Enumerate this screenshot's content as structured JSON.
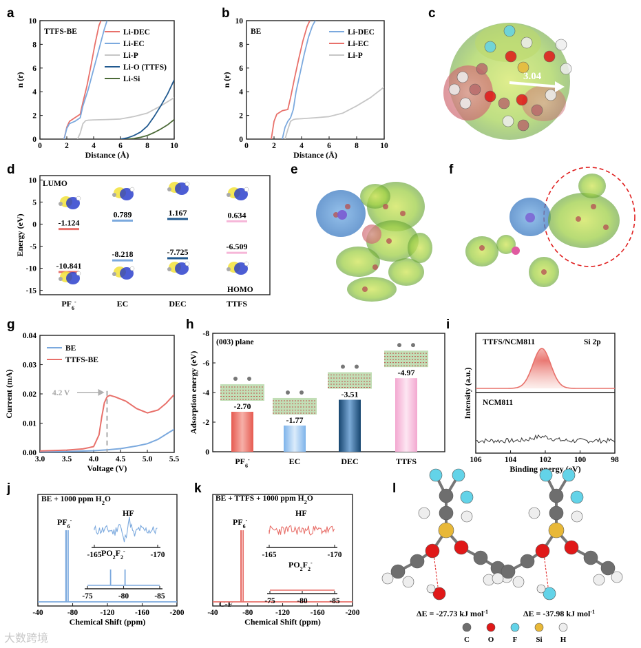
{
  "panel_letters": [
    "a",
    "b",
    "c",
    "d",
    "e",
    "f",
    "g",
    "h",
    "i",
    "j",
    "k",
    "l"
  ],
  "panel_a": {
    "inset": "TTFS-BE"
  },
  "panel_b": {
    "inset": "BE"
  },
  "panel_c": {
    "distance_label": "3.04"
  },
  "panel_d": {
    "lumo_label": "LUMO",
    "homo_label": "HOMO"
  },
  "panel_g": {
    "annotation": "4.2 V"
  },
  "panel_h": {
    "plane_label": "(003) plane"
  },
  "panel_i": {
    "top_label": "TTFS/NCM811",
    "orbital_label": "Si 2p",
    "bottom_label": "NCM811"
  },
  "panel_j": {
    "condition": "BE + 1000 ppm H",
    "subscript": "2",
    "condition_tail": "O",
    "pf6": "PF",
    "hf": "HF",
    "po2f2": "PO2F2-"
  },
  "panel_k": {
    "condition": "BE + TTFS + 1000 ppm H",
    "subscript": "2",
    "condition_tail": "O",
    "pf6": "PF",
    "hf": "HF",
    "po2f2": "PO2F2-",
    "cf": "C-F"
  },
  "panel_l": {
    "energy_1": "ΔE = -27.73 kJ mol",
    "energy_2": "ΔE = -37.98 kJ mol",
    "unit_exp": "-1",
    "elements": [
      {
        "symbol": "C",
        "color": "#6e6e6e"
      },
      {
        "symbol": "O",
        "color": "#e01818"
      },
      {
        "symbol": "F",
        "color": "#63d3e8"
      },
      {
        "symbol": "Si",
        "color": "#e8b838"
      },
      {
        "symbol": "H",
        "color": "#eeeeee"
      }
    ]
  },
  "watermark": "大数跨境",
  "colors": {
    "red": "#e8706a",
    "blue": "#7ba9de",
    "gray": "#c6c6c6",
    "navy": "#20598f",
    "olive": "#4c6a37",
    "pink": "#f6b6d8",
    "lblue": "#9cc5ee"
  },
  "chart_data": [
    {
      "id": "a",
      "type": "line",
      "xlabel": "Distance (Å)",
      "ylabel": "n (r)",
      "xlim": [
        0,
        10
      ],
      "ylim": [
        0,
        10
      ],
      "xticks": [
        0,
        2,
        4,
        6,
        8,
        10
      ],
      "yticks": [
        0,
        2,
        4,
        6,
        8,
        10
      ],
      "legend_position": "top-right",
      "series": [
        {
          "name": "Li-DEC",
          "color": "#e8706a",
          "x": [
            1.8,
            2.0,
            2.2,
            2.6,
            3.0,
            3.2,
            3.5,
            3.8,
            4.1,
            4.4,
            4.55
          ],
          "y": [
            0,
            1.0,
            1.5,
            1.8,
            2.1,
            3.1,
            4.5,
            6.2,
            8.0,
            9.6,
            10
          ]
        },
        {
          "name": "Li-EC",
          "color": "#7ba9de",
          "x": [
            1.8,
            2.0,
            2.2,
            2.6,
            3.0,
            3.2,
            3.6,
            4.0,
            4.4,
            4.8,
            5.0
          ],
          "y": [
            0,
            0.9,
            1.3,
            1.5,
            1.8,
            2.8,
            4.2,
            5.9,
            7.6,
            9.3,
            10
          ]
        },
        {
          "name": "Li-P",
          "color": "#c6c6c6",
          "x": [
            2.8,
            3.0,
            3.2,
            3.4,
            3.6,
            4.0,
            5.0,
            6.0,
            7.0,
            8.0,
            9.0,
            10.0
          ],
          "y": [
            0,
            0.5,
            1.3,
            1.55,
            1.6,
            1.62,
            1.65,
            1.7,
            1.9,
            2.2,
            2.8,
            3.5
          ]
        },
        {
          "name": "Li-O (TTFS)",
          "color": "#20598f",
          "x": [
            6.0,
            6.5,
            7.0,
            7.5,
            8.0,
            8.5,
            9.0,
            9.5,
            10.0
          ],
          "y": [
            0,
            0.1,
            0.3,
            0.6,
            1.1,
            1.9,
            2.8,
            3.8,
            5.0
          ]
        },
        {
          "name": "Li-Si",
          "color": "#4c6a37",
          "x": [
            6.5,
            7.0,
            7.5,
            8.0,
            8.5,
            9.0,
            9.5,
            10.0
          ],
          "y": [
            0,
            0.05,
            0.15,
            0.3,
            0.55,
            0.85,
            1.2,
            1.65
          ]
        }
      ]
    },
    {
      "id": "b",
      "type": "line",
      "xlabel": "Distance (Å)",
      "ylabel": "n (r)",
      "xlim": [
        0,
        10
      ],
      "ylim": [
        0,
        10
      ],
      "xticks": [
        0,
        2,
        4,
        6,
        8,
        10
      ],
      "yticks": [
        0,
        2,
        4,
        6,
        8,
        10
      ],
      "legend_position": "top-right",
      "series": [
        {
          "name": "Li-DEC",
          "color": "#7ba9de",
          "x": [
            2.6,
            2.8,
            3.0,
            3.2,
            3.4,
            3.6,
            3.9,
            4.2,
            4.5,
            4.8,
            5.0
          ],
          "y": [
            0,
            1.0,
            1.5,
            1.8,
            2.5,
            4.0,
            5.6,
            7.2,
            8.6,
            9.6,
            10
          ]
        },
        {
          "name": "Li-EC",
          "color": "#e8706a",
          "x": [
            1.8,
            2.0,
            2.2,
            2.6,
            3.0,
            3.2,
            3.5,
            3.8,
            4.1,
            4.4,
            4.6
          ],
          "y": [
            0,
            1.5,
            2.1,
            2.4,
            2.5,
            3.5,
            5.2,
            6.8,
            8.3,
            9.5,
            10
          ]
        },
        {
          "name": "Li-P",
          "color": "#c6c6c6",
          "x": [
            2.8,
            3.0,
            3.2,
            3.4,
            3.6,
            4.0,
            5.0,
            6.0,
            7.0,
            8.0,
            9.0,
            10.0
          ],
          "y": [
            0,
            0.8,
            1.5,
            1.65,
            1.7,
            1.72,
            1.8,
            1.9,
            2.2,
            2.8,
            3.5,
            4.4
          ]
        }
      ]
    },
    {
      "id": "d",
      "type": "scatter",
      "ylabel": "Energy (eV)",
      "ylim": [
        -16,
        11
      ],
      "yticks": [
        -15,
        -10,
        -5,
        0,
        5,
        10
      ],
      "categories": [
        "PF6-",
        "EC",
        "DEC",
        "TTFS"
      ],
      "lumo": [
        -1.124,
        0.789,
        1.167,
        0.634
      ],
      "homo": [
        -10.841,
        -8.218,
        -7.725,
        -6.509
      ],
      "colors": [
        "#e8706a",
        "#7ba9de",
        "#20598f",
        "#f6b6d8"
      ]
    },
    {
      "id": "g",
      "type": "line",
      "xlabel": "Voltage (V)",
      "ylabel": "Current (mA)",
      "xlim": [
        3.0,
        5.5
      ],
      "ylim": [
        0,
        0.04
      ],
      "xticks": [
        3.0,
        3.5,
        4.0,
        4.5,
        5.0,
        5.5
      ],
      "yticks": [
        0.0,
        0.01,
        0.02,
        0.03,
        0.04
      ],
      "legend_position": "top-left",
      "series": [
        {
          "name": "BE",
          "color": "#7ba9de",
          "x": [
            3.0,
            3.5,
            4.0,
            4.25,
            4.5,
            4.8,
            5.0,
            5.2,
            5.4,
            5.5
          ],
          "y": [
            0.0002,
            0.0003,
            0.0006,
            0.0009,
            0.0013,
            0.0022,
            0.003,
            0.0045,
            0.0068,
            0.0079
          ]
        },
        {
          "name": "TTFS-BE",
          "color": "#e8706a",
          "x": [
            3.0,
            3.5,
            3.8,
            4.0,
            4.1,
            4.15,
            4.2,
            4.25,
            4.3,
            4.4,
            4.6,
            4.8,
            5.0,
            5.2,
            5.35,
            5.5
          ],
          "y": [
            0.0005,
            0.0008,
            0.0012,
            0.002,
            0.006,
            0.012,
            0.017,
            0.019,
            0.0195,
            0.019,
            0.0175,
            0.015,
            0.0135,
            0.0145,
            0.0168,
            0.0198
          ]
        }
      ],
      "annotation_x": 4.25
    },
    {
      "id": "h",
      "type": "bar",
      "ylabel": "Adsorption energy (eV)",
      "ylim": [
        0,
        -8
      ],
      "yticks": [
        0,
        -2,
        -4,
        -6,
        -8
      ],
      "categories": [
        "PF6-",
        "EC",
        "DEC",
        "TTFS"
      ],
      "values": [
        -2.7,
        -1.77,
        -3.51,
        -4.97
      ],
      "colors": [
        "#e8706a",
        "#9cc5ee",
        "#20598f",
        "#f6b6d8"
      ]
    },
    {
      "id": "i",
      "type": "line",
      "xlabel": "Binding energy (eV)",
      "ylabel": "Intensity (a.u.)",
      "xlim": [
        106,
        98
      ],
      "xticks": [
        106,
        104,
        102,
        100,
        98
      ],
      "series": [
        {
          "name": "TTFS/NCM811",
          "color": "#e8706a",
          "peak_center": 102.2,
          "peak_fwhm": 1.2
        },
        {
          "name": "NCM811",
          "color": "#333333"
        }
      ]
    },
    {
      "id": "j",
      "type": "line",
      "xlabel": "Chemical Shift (ppm)",
      "xlim": [
        -40,
        -200
      ],
      "xticks": [
        -40,
        -80,
        -120,
        -160,
        -200
      ],
      "peaks": [
        {
          "label": "PF6-",
          "x": -72.5
        }
      ],
      "inset_hf": {
        "xlim": [
          -165,
          -170
        ],
        "xticks": [
          -165,
          -170
        ]
      },
      "inset_po2f2": {
        "xlim": [
          -75,
          -85
        ],
        "xticks": [
          -75,
          -80,
          -85
        ],
        "peaks": [
          -78.2,
          -80.2
        ]
      }
    },
    {
      "id": "k",
      "type": "line",
      "xlabel": "Chemical Shift (ppm)",
      "xlim": [
        -40,
        -200
      ],
      "xticks": [
        -40,
        -80,
        -120,
        -160,
        -200
      ],
      "peaks": [
        {
          "label": "PF6-",
          "x": -72.5
        }
      ],
      "inset_hf": {
        "xlim": [
          -165,
          -170
        ],
        "xticks": [
          -165,
          -170
        ]
      },
      "inset_po2f2": {
        "xlim": [
          -75,
          -85
        ],
        "xticks": [
          -75,
          -80,
          -85
        ]
      }
    }
  ]
}
